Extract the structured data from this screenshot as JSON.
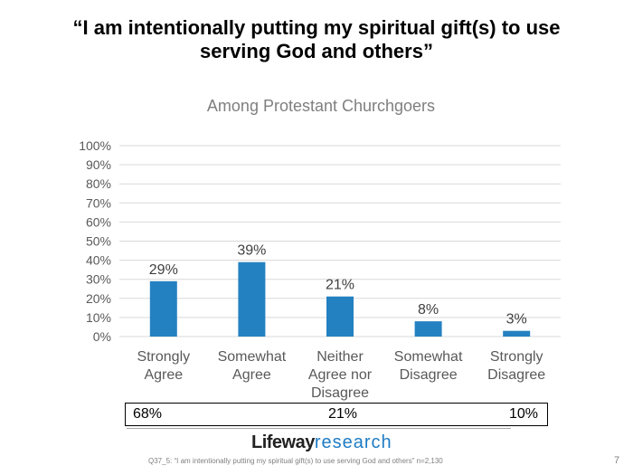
{
  "title_line1": "“I am intentionally putting my spiritual gift(s) to use",
  "title_line2": "serving God and others”",
  "chart_data": {
    "type": "bar",
    "title": "Among Protestant Churchgoers",
    "categories": [
      [
        "Strongly",
        "Agree"
      ],
      [
        "Somewhat",
        "Agree"
      ],
      [
        "Neither",
        "Agree nor",
        "Disagree"
      ],
      [
        "Somewhat",
        "Disagree"
      ],
      [
        "Strongly",
        "Disagree"
      ]
    ],
    "values": [
      29,
      39,
      21,
      8,
      3
    ],
    "data_labels": [
      "29%",
      "39%",
      "21%",
      "8%",
      "3%"
    ],
    "yticks": [
      "0%",
      "10%",
      "20%",
      "30%",
      "40%",
      "50%",
      "60%",
      "70%",
      "80%",
      "90%",
      "100%"
    ],
    "ylim": [
      0,
      100
    ],
    "grid": true,
    "bar_color": "#2481c1"
  },
  "summary": {
    "agree": "68%",
    "neither": "21%",
    "disagree": "10%"
  },
  "logo": {
    "part1": "Lifeway",
    "part2": "research"
  },
  "footnote": "Q37_5: “I am intentionally putting my spiritual gift(s) to use serving God and others”  n=2,130",
  "page_number": "7"
}
